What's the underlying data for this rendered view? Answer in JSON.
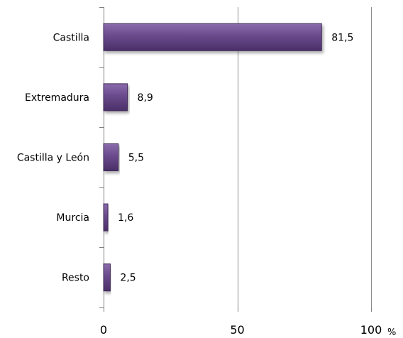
{
  "chart_data": {
    "type": "bar",
    "orientation": "horizontal",
    "categories": [
      "Castilla",
      "Extremadura",
      "Castilla y León",
      "Murcia",
      "Resto"
    ],
    "values": [
      81.5,
      8.9,
      5.5,
      1.6,
      2.5
    ],
    "value_labels": [
      "81,5",
      "8,9",
      "5,5",
      "1,6",
      "2,5"
    ],
    "xlim": [
      0,
      100
    ],
    "xticks": [
      0,
      50,
      100
    ],
    "xtick_labels": [
      "0",
      "50",
      "100"
    ],
    "xunit": "%",
    "grid": "vertical lines at major ticks",
    "bar_color": "#6a4a8c",
    "bar_edge_color": "#3f2a59"
  }
}
